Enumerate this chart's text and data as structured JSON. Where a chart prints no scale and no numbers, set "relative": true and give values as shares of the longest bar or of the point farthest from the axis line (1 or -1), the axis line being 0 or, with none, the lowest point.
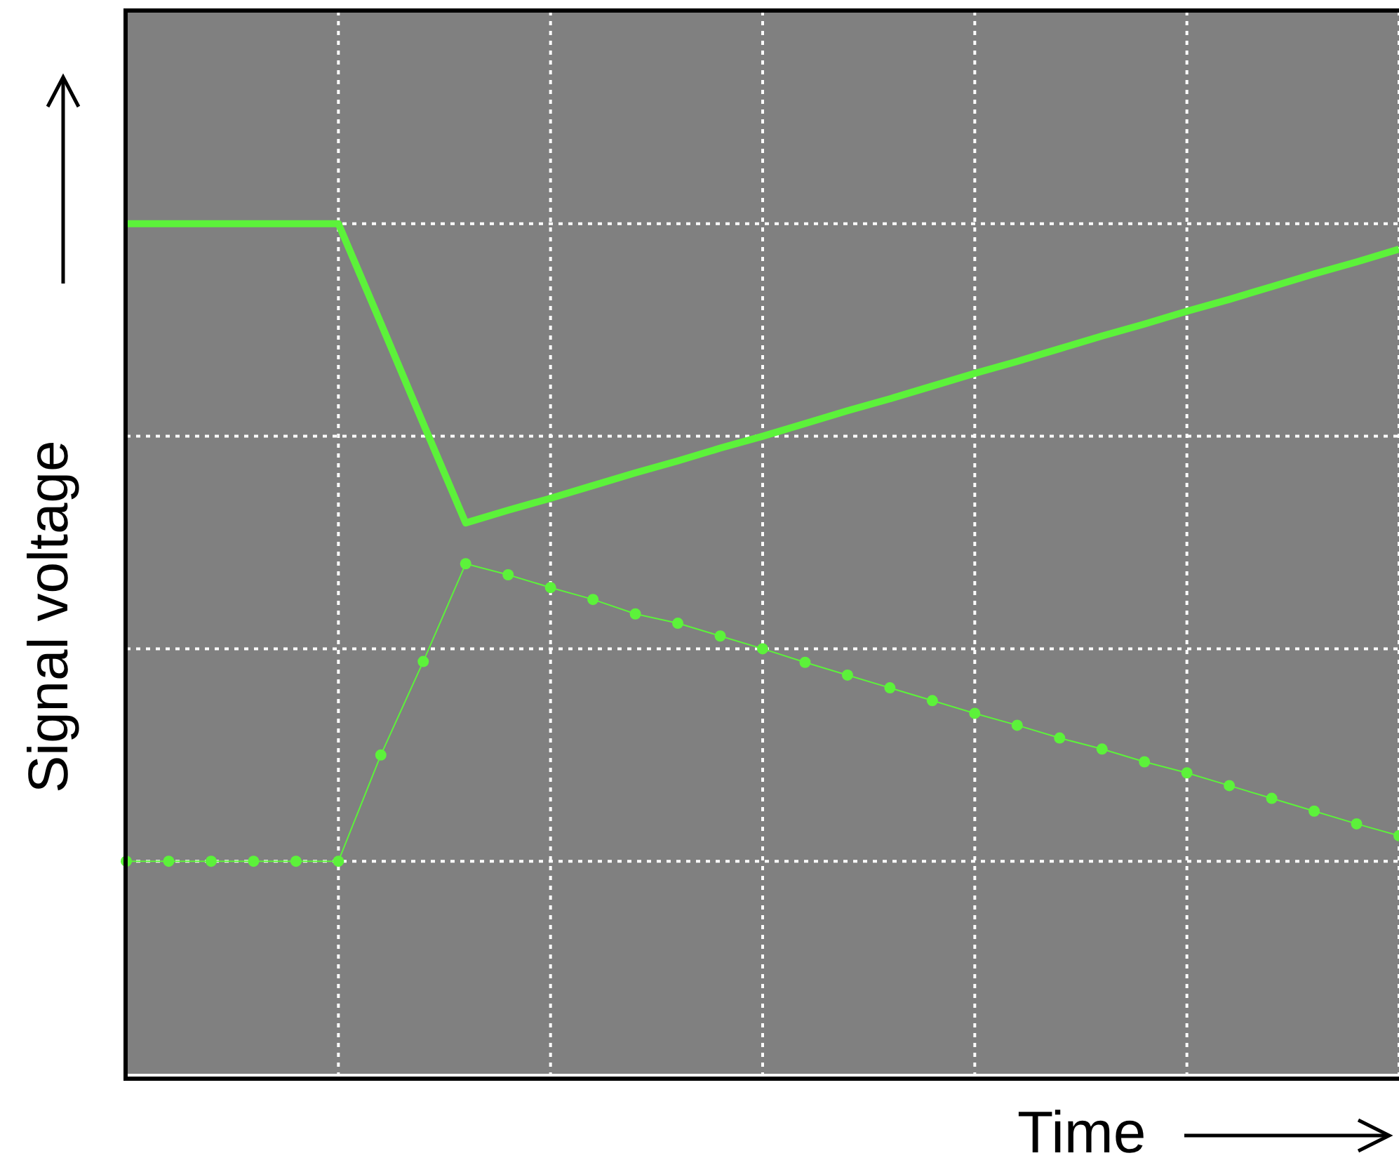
{
  "chart_data": {
    "type": "line",
    "relative": true,
    "xlabel": "Time",
    "ylabel": "Signal voltage",
    "grid": true,
    "categories": [
      null,
      null,
      null,
      null,
      null,
      null,
      null,
      null,
      null,
      null,
      null,
      null,
      null,
      null,
      null,
      null,
      null,
      null,
      null,
      null,
      null,
      null,
      null,
      null,
      null,
      null,
      null,
      null,
      null,
      null,
      null
    ],
    "series": [
      {
        "color": "#5cf23a",
        "marker": "none",
        "values": [
          1.0,
          1.0,
          1.0,
          1.0,
          1.0,
          1.0,
          0.883,
          0.765,
          0.648,
          0.663,
          0.677,
          0.692,
          0.707,
          0.721,
          0.736,
          0.75,
          0.765,
          0.78,
          0.794,
          0.809,
          0.824,
          0.838,
          0.853,
          0.868,
          0.882,
          0.897,
          0.911,
          0.926,
          0.941,
          0.955,
          0.97
        ]
      },
      {
        "color": "#5cf23a",
        "marker": "circle",
        "values": [
          0.25,
          0.25,
          0.25,
          0.25,
          0.25,
          0.25,
          0.375,
          0.485,
          0.6,
          0.587,
          0.572,
          0.558,
          0.541,
          0.53,
          0.515,
          0.5,
          0.484,
          0.469,
          0.454,
          0.439,
          0.424,
          0.41,
          0.395,
          0.382,
          0.367,
          0.354,
          0.339,
          0.324,
          0.309,
          0.294,
          0.28
        ]
      }
    ]
  }
}
